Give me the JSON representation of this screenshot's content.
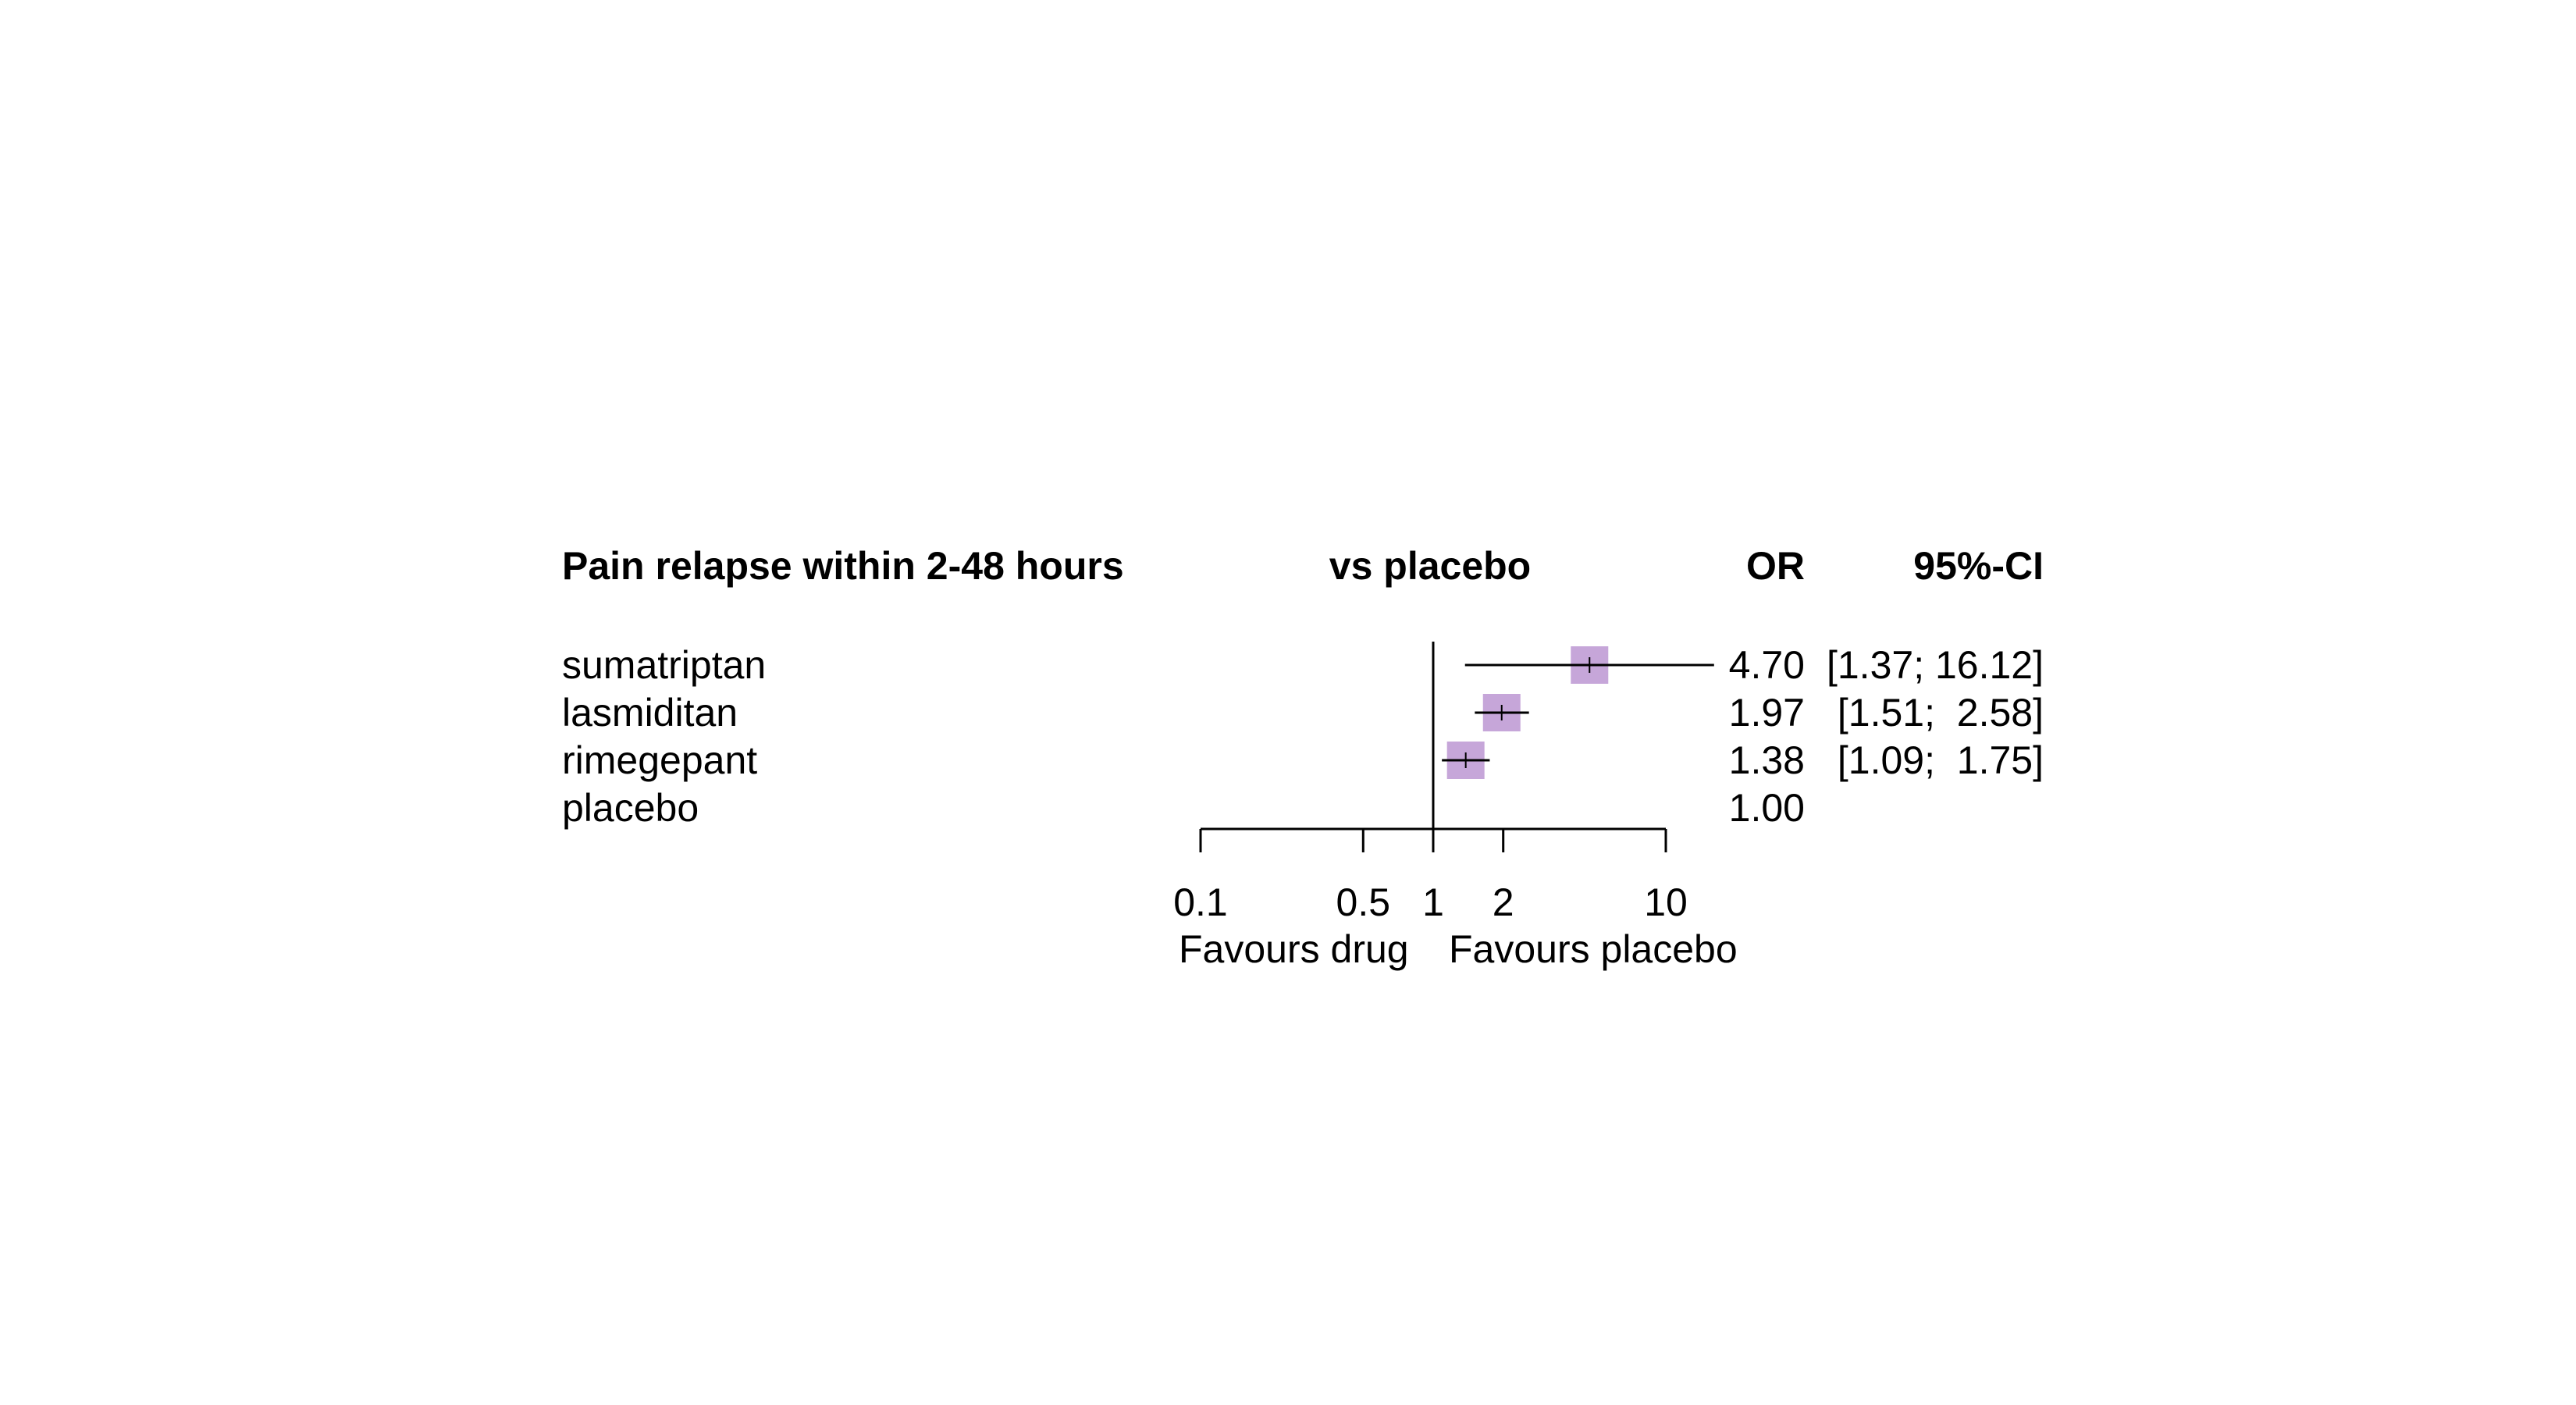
{
  "chart_data": {
    "type": "forest",
    "title": "Pain relapse within 2-48 hours",
    "comparison_header": "vs placebo",
    "estimate_header": "OR",
    "ci_header": "95%-CI",
    "scale": "log",
    "xlim": [
      0.1,
      10
    ],
    "xticks": [
      {
        "value": 0.1,
        "label": "0.1"
      },
      {
        "value": 0.5,
        "label": "0.5"
      },
      {
        "value": 1,
        "label": "1"
      },
      {
        "value": 2,
        "label": "2"
      },
      {
        "value": 10,
        "label": "10"
      }
    ],
    "reference_line": 1,
    "favours_left": "Favours drug",
    "favours_right": "Favours placebo",
    "marker_color": "#c6a6d9",
    "rows": [
      {
        "name": "sumatriptan",
        "or": 4.7,
        "lower": 1.37,
        "upper": 16.12,
        "or_text": "4.70",
        "ci_text": "[1.37; 16.12]",
        "marker_scale": 1.0
      },
      {
        "name": "lasmiditan",
        "or": 1.97,
        "lower": 1.51,
        "upper": 2.58,
        "or_text": "1.97",
        "ci_text": "[1.51;  2.58]",
        "marker_scale": 1.0
      },
      {
        "name": "rimegepant",
        "or": 1.38,
        "lower": 1.09,
        "upper": 1.75,
        "or_text": "1.38",
        "ci_text": "[1.09;  1.75]",
        "marker_scale": 1.0
      },
      {
        "name": "placebo",
        "or": 1.0,
        "lower": null,
        "upper": null,
        "or_text": "1.00",
        "ci_text": "",
        "marker_scale": 0
      }
    ]
  }
}
